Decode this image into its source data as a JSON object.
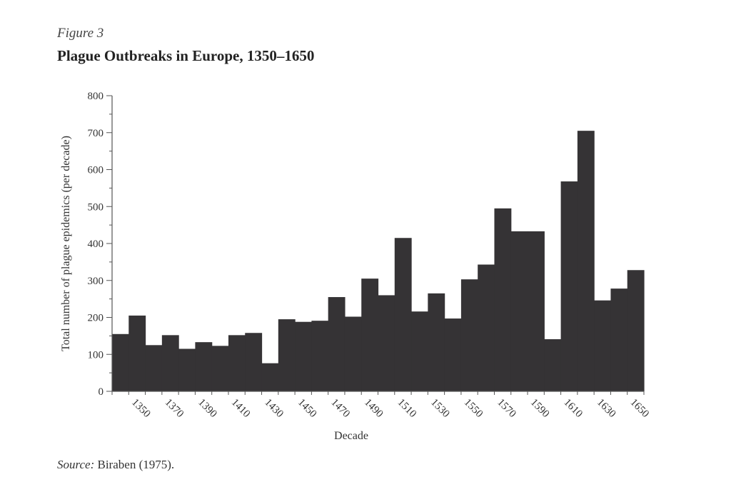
{
  "figure": {
    "label": "Figure 3",
    "title": "Plague Outbreaks in Europe, 1350–1650"
  },
  "source": {
    "label": "Source:",
    "text": "Biraben (1975)."
  },
  "colors": {
    "bar": "#353335",
    "axis": "#555555",
    "text": "#333333"
  },
  "chart_data": {
    "type": "bar",
    "title": "Plague Outbreaks in Europe, 1350–1650",
    "xlabel": "Decade",
    "ylabel": "Total number of plague epidemics (per decade)",
    "ylim": [
      0,
      800
    ],
    "yticks": [
      0,
      100,
      200,
      300,
      400,
      500,
      600,
      700,
      800
    ],
    "xtick_labels": [
      "1350",
      "1370",
      "1390",
      "1410",
      "1430",
      "1450",
      "1470",
      "1490",
      "1510",
      "1530",
      "1550",
      "1570",
      "1590",
      "1610",
      "1630",
      "1650"
    ],
    "categories": [
      "1340",
      "1350",
      "1360",
      "1370",
      "1380",
      "1390",
      "1400",
      "1410",
      "1420",
      "1430",
      "1440",
      "1450",
      "1460",
      "1470",
      "1480",
      "1490",
      "1500",
      "1510",
      "1520",
      "1530",
      "1540",
      "1550",
      "1560",
      "1570",
      "1580",
      "1590",
      "1600",
      "1610",
      "1620",
      "1630",
      "1640",
      "1650"
    ],
    "values": [
      155,
      205,
      125,
      152,
      115,
      133,
      123,
      152,
      158,
      76,
      195,
      188,
      191,
      255,
      202,
      305,
      260,
      415,
      216,
      265,
      197,
      303,
      343,
      495,
      433,
      433,
      141,
      568,
      705,
      246,
      278,
      328
    ],
    "grid": false
  }
}
